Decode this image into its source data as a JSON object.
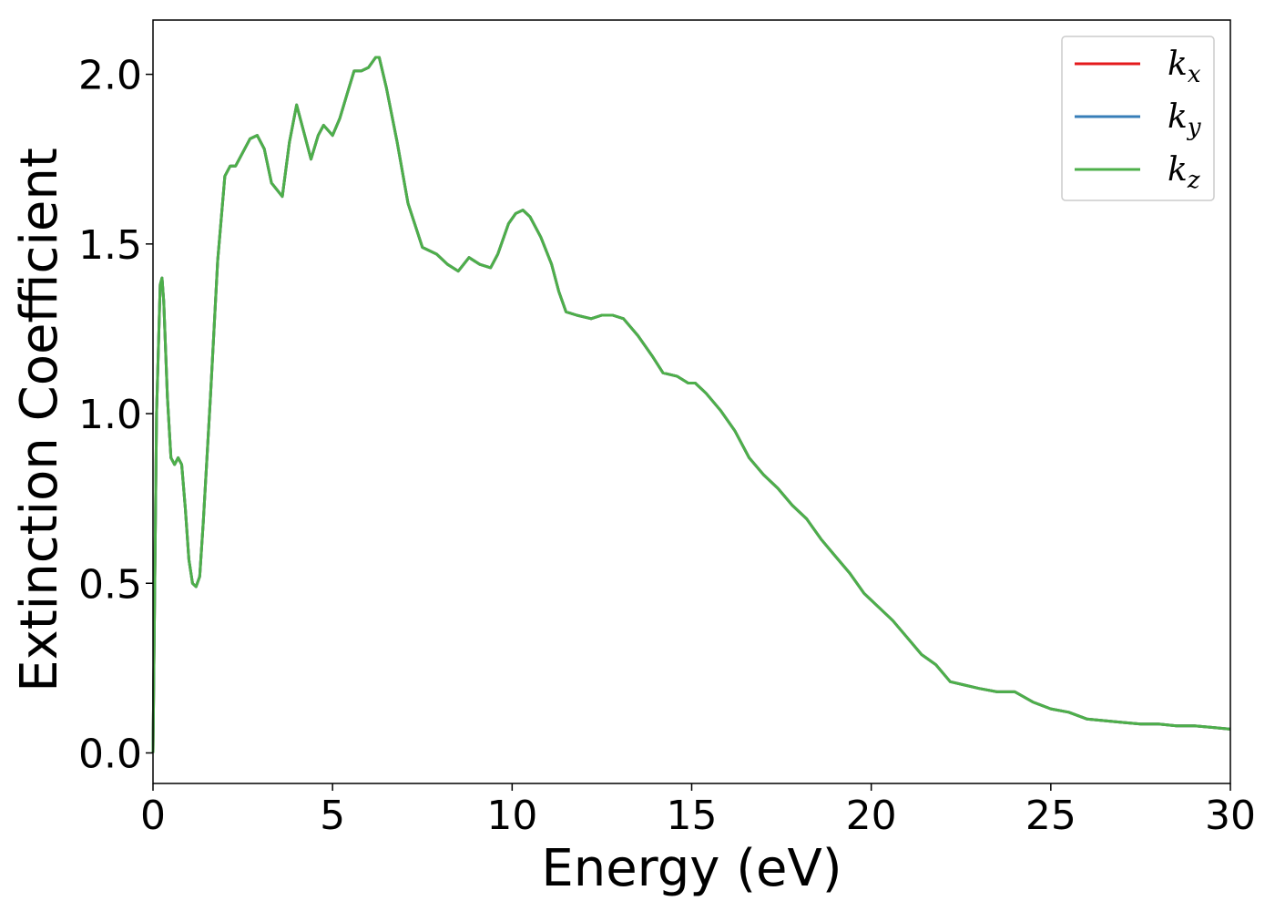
{
  "chart_data": {
    "type": "line",
    "title": "",
    "xlabel": "Energy (eV)",
    "ylabel": "Extinction Coefficient",
    "xlim": [
      0,
      30
    ],
    "ylim": [
      -0.09,
      2.16
    ],
    "xticks": [
      0,
      5,
      10,
      15,
      20,
      25,
      30
    ],
    "xtick_labels": [
      "0",
      "5",
      "10",
      "15",
      "20",
      "25",
      "30"
    ],
    "yticks": [
      0.0,
      0.5,
      1.0,
      1.5,
      2.0
    ],
    "ytick_labels": [
      "0.0",
      "0.5",
      "1.0",
      "1.5",
      "2.0"
    ],
    "grid": false,
    "legend_position": "top-right",
    "x": [
      0,
      0.1,
      0.2,
      0.25,
      0.3,
      0.4,
      0.5,
      0.6,
      0.7,
      0.8,
      0.9,
      1.0,
      1.1,
      1.2,
      1.3,
      1.4,
      1.6,
      1.8,
      2.0,
      2.15,
      2.3,
      2.5,
      2.7,
      2.9,
      3.1,
      3.3,
      3.6,
      3.8,
      4.0,
      4.2,
      4.4,
      4.6,
      4.75,
      5.0,
      5.2,
      5.4,
      5.6,
      5.8,
      6.0,
      6.2,
      6.3,
      6.5,
      6.8,
      7.1,
      7.5,
      7.9,
      8.2,
      8.5,
      8.8,
      9.1,
      9.4,
      9.6,
      9.9,
      10.1,
      10.3,
      10.5,
      10.8,
      11.1,
      11.3,
      11.5,
      11.8,
      12.2,
      12.5,
      12.8,
      13.1,
      13.5,
      13.9,
      14.2,
      14.6,
      14.9,
      15.1,
      15.4,
      15.8,
      16.2,
      16.6,
      17.0,
      17.4,
      17.8,
      18.2,
      18.6,
      19.0,
      19.4,
      19.8,
      20.2,
      20.6,
      21.0,
      21.4,
      21.8,
      22.2,
      22.6,
      23.0,
      23.5,
      24.0,
      24.5,
      25.0,
      25.5,
      26.0,
      26.5,
      27.0,
      27.5,
      28.0,
      28.5,
      29.0,
      29.5,
      30.0
    ],
    "series": [
      {
        "name": "k_x",
        "color": "#e41a1c",
        "values": [
          0.0,
          1.0,
          1.38,
          1.4,
          1.33,
          1.05,
          0.87,
          0.85,
          0.87,
          0.85,
          0.72,
          0.57,
          0.5,
          0.49,
          0.52,
          0.68,
          1.05,
          1.45,
          1.7,
          1.73,
          1.73,
          1.77,
          1.81,
          1.82,
          1.78,
          1.68,
          1.64,
          1.8,
          1.91,
          1.83,
          1.75,
          1.82,
          1.85,
          1.82,
          1.87,
          1.94,
          2.01,
          2.01,
          2.02,
          2.05,
          2.05,
          1.96,
          1.8,
          1.62,
          1.49,
          1.47,
          1.44,
          1.42,
          1.46,
          1.44,
          1.43,
          1.47,
          1.56,
          1.59,
          1.6,
          1.58,
          1.52,
          1.44,
          1.36,
          1.3,
          1.29,
          1.28,
          1.29,
          1.29,
          1.28,
          1.23,
          1.17,
          1.12,
          1.11,
          1.09,
          1.09,
          1.06,
          1.01,
          0.95,
          0.87,
          0.82,
          0.78,
          0.73,
          0.69,
          0.63,
          0.58,
          0.53,
          0.47,
          0.43,
          0.39,
          0.34,
          0.29,
          0.26,
          0.21,
          0.2,
          0.19,
          0.18,
          0.18,
          0.15,
          0.13,
          0.12,
          0.1,
          0.095,
          0.09,
          0.085,
          0.085,
          0.08,
          0.08,
          0.075,
          0.07
        ]
      },
      {
        "name": "k_y",
        "color": "#377eb8",
        "values": [
          0.0,
          1.0,
          1.38,
          1.4,
          1.33,
          1.05,
          0.87,
          0.85,
          0.87,
          0.85,
          0.72,
          0.57,
          0.5,
          0.49,
          0.52,
          0.68,
          1.05,
          1.45,
          1.7,
          1.73,
          1.73,
          1.77,
          1.81,
          1.82,
          1.78,
          1.68,
          1.64,
          1.8,
          1.91,
          1.83,
          1.75,
          1.82,
          1.85,
          1.82,
          1.87,
          1.94,
          2.01,
          2.01,
          2.02,
          2.05,
          2.05,
          1.96,
          1.8,
          1.62,
          1.49,
          1.47,
          1.44,
          1.42,
          1.46,
          1.44,
          1.43,
          1.47,
          1.56,
          1.59,
          1.6,
          1.58,
          1.52,
          1.44,
          1.36,
          1.3,
          1.29,
          1.28,
          1.29,
          1.29,
          1.28,
          1.23,
          1.17,
          1.12,
          1.11,
          1.09,
          1.09,
          1.06,
          1.01,
          0.95,
          0.87,
          0.82,
          0.78,
          0.73,
          0.69,
          0.63,
          0.58,
          0.53,
          0.47,
          0.43,
          0.39,
          0.34,
          0.29,
          0.26,
          0.21,
          0.2,
          0.19,
          0.18,
          0.18,
          0.15,
          0.13,
          0.12,
          0.1,
          0.095,
          0.09,
          0.085,
          0.085,
          0.08,
          0.08,
          0.075,
          0.07
        ]
      },
      {
        "name": "k_z",
        "color": "#4daf4a",
        "values": [
          0.0,
          1.0,
          1.38,
          1.4,
          1.33,
          1.05,
          0.87,
          0.85,
          0.87,
          0.85,
          0.72,
          0.57,
          0.5,
          0.49,
          0.52,
          0.68,
          1.05,
          1.45,
          1.7,
          1.73,
          1.73,
          1.77,
          1.81,
          1.82,
          1.78,
          1.68,
          1.64,
          1.8,
          1.91,
          1.83,
          1.75,
          1.82,
          1.85,
          1.82,
          1.87,
          1.94,
          2.01,
          2.01,
          2.02,
          2.05,
          2.05,
          1.96,
          1.8,
          1.62,
          1.49,
          1.47,
          1.44,
          1.42,
          1.46,
          1.44,
          1.43,
          1.47,
          1.56,
          1.59,
          1.6,
          1.58,
          1.52,
          1.44,
          1.36,
          1.3,
          1.29,
          1.28,
          1.29,
          1.29,
          1.28,
          1.23,
          1.17,
          1.12,
          1.11,
          1.09,
          1.09,
          1.06,
          1.01,
          0.95,
          0.87,
          0.82,
          0.78,
          0.73,
          0.69,
          0.63,
          0.58,
          0.53,
          0.47,
          0.43,
          0.39,
          0.34,
          0.29,
          0.26,
          0.21,
          0.2,
          0.19,
          0.18,
          0.18,
          0.15,
          0.13,
          0.12,
          0.1,
          0.095,
          0.09,
          0.085,
          0.085,
          0.08,
          0.08,
          0.075,
          0.07
        ]
      }
    ],
    "legend": [
      {
        "base": "k",
        "sub": "x",
        "color": "#e41a1c"
      },
      {
        "base": "k",
        "sub": "y",
        "color": "#377eb8"
      },
      {
        "base": "k",
        "sub": "z",
        "color": "#4daf4a"
      }
    ]
  }
}
